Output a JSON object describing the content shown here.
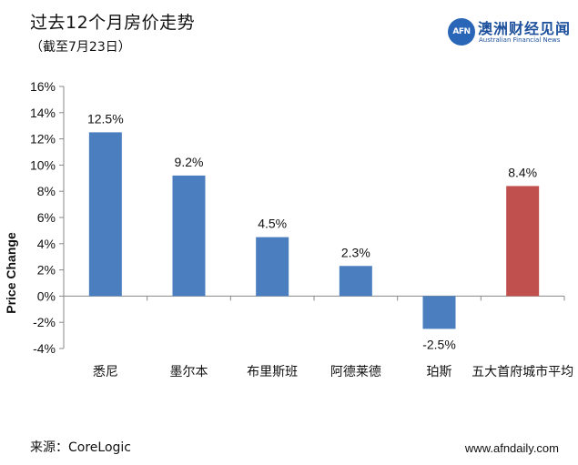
{
  "header": {
    "title": "过去12个月房价走势",
    "subtitle": "（截至7月23日）"
  },
  "logo": {
    "badge": "AFN",
    "name": "澳洲财经见闻",
    "english": "Australian Financial News"
  },
  "footer": {
    "source": "来源：CoreLogic",
    "url": "www.afndaily.com"
  },
  "colors": {
    "bar_default": "#4a7ebf",
    "bar_highlight": "#c0504d"
  },
  "chart_data": {
    "type": "bar",
    "ylabel": "Price Change",
    "xlabel": "",
    "ylim": [
      -4,
      16
    ],
    "yticks": [
      -4,
      -2,
      0,
      2,
      4,
      6,
      8,
      10,
      12,
      14,
      16
    ],
    "y_tick_suffix": "%",
    "categories": [
      "悉尼",
      "墨尔本",
      "布里斯班",
      "阿德莱德",
      "珀斯",
      "五大首府城市平均"
    ],
    "values": [
      12.5,
      9.2,
      4.5,
      2.3,
      -2.5,
      8.4
    ],
    "data_labels": [
      "12.5%",
      "9.2%",
      "4.5%",
      "2.3%",
      "-2.5%",
      "8.4%"
    ],
    "highlight_index": 5,
    "grid": false,
    "legend": "none"
  }
}
